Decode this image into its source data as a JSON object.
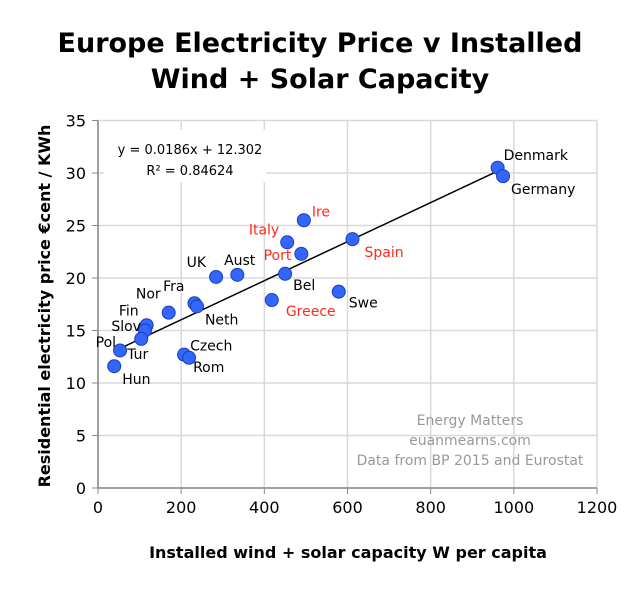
{
  "chart_data": {
    "type": "scatter",
    "title": "Europe Electricity Price v Installed Wind + Solar Capacity",
    "title_lines": [
      "Europe Electricity Price v Installed",
      "Wind + Solar Capacity"
    ],
    "xlabel": "Installed wind + solar capacity W per capita",
    "ylabel": "Residential electricity price €cent / KWh",
    "xlim": [
      0,
      1200
    ],
    "ylim": [
      0,
      35
    ],
    "xticks": [
      0,
      200,
      400,
      600,
      800,
      1000,
      1200
    ],
    "yticks": [
      0,
      5,
      10,
      15,
      20,
      25,
      30,
      35
    ],
    "grid": true,
    "marker_color": "#3366ff",
    "trendline": {
      "slope": 0.0186,
      "intercept": 12.302,
      "equation": "y = 0.0186x + 12.302",
      "r2": "R² = 0.84624"
    },
    "points": [
      {
        "label": "Denmark",
        "x": 961,
        "y": 30.5,
        "color": "#000000"
      },
      {
        "label": "Germany",
        "x": 974,
        "y": 29.7,
        "color": "#000000"
      },
      {
        "label": "Ire",
        "x": 495,
        "y": 25.5,
        "color": "#ff2a1a"
      },
      {
        "label": "Italy",
        "x": 455,
        "y": 23.4,
        "color": "#ff2a1a"
      },
      {
        "label": "Port",
        "x": 489,
        "y": 22.3,
        "color": "#ff2a1a"
      },
      {
        "label": "Spain",
        "x": 612,
        "y": 23.7,
        "color": "#ff2a1a"
      },
      {
        "label": "Bel",
        "x": 450,
        "y": 20.4,
        "color": "#000000"
      },
      {
        "label": "Greece",
        "x": 418,
        "y": 17.9,
        "color": "#ff2a1a"
      },
      {
        "label": "Swe",
        "x": 579,
        "y": 18.7,
        "color": "#000000"
      },
      {
        "label": "UK",
        "x": 284,
        "y": 20.1,
        "color": "#000000"
      },
      {
        "label": "Aust",
        "x": 335,
        "y": 20.3,
        "color": "#000000"
      },
      {
        "label": "Fra",
        "x": 232,
        "y": 17.6,
        "color": "#000000"
      },
      {
        "label": "Neth",
        "x": 238,
        "y": 17.3,
        "color": "#000000"
      },
      {
        "label": "Nor",
        "x": 170,
        "y": 16.7,
        "color": "#000000"
      },
      {
        "label": "Fin",
        "x": 117,
        "y": 15.5,
        "color": "#000000"
      },
      {
        "label": "Slov",
        "x": 113,
        "y": 15.0,
        "color": "#000000"
      },
      {
        "label": "Tur",
        "x": 104,
        "y": 14.2,
        "color": "#000000"
      },
      {
        "label": "Pol",
        "x": 53,
        "y": 13.1,
        "color": "#000000"
      },
      {
        "label": "Hun",
        "x": 39,
        "y": 11.6,
        "color": "#000000"
      },
      {
        "label": "Czech",
        "x": 207,
        "y": 12.7,
        "color": "#000000"
      },
      {
        "label": "Rom",
        "x": 219,
        "y": 12.4,
        "color": "#000000"
      }
    ],
    "annotations": [
      "Energy Matters",
      "euanmearns.com",
      "Data from BP 2015 and Eurostat"
    ]
  }
}
